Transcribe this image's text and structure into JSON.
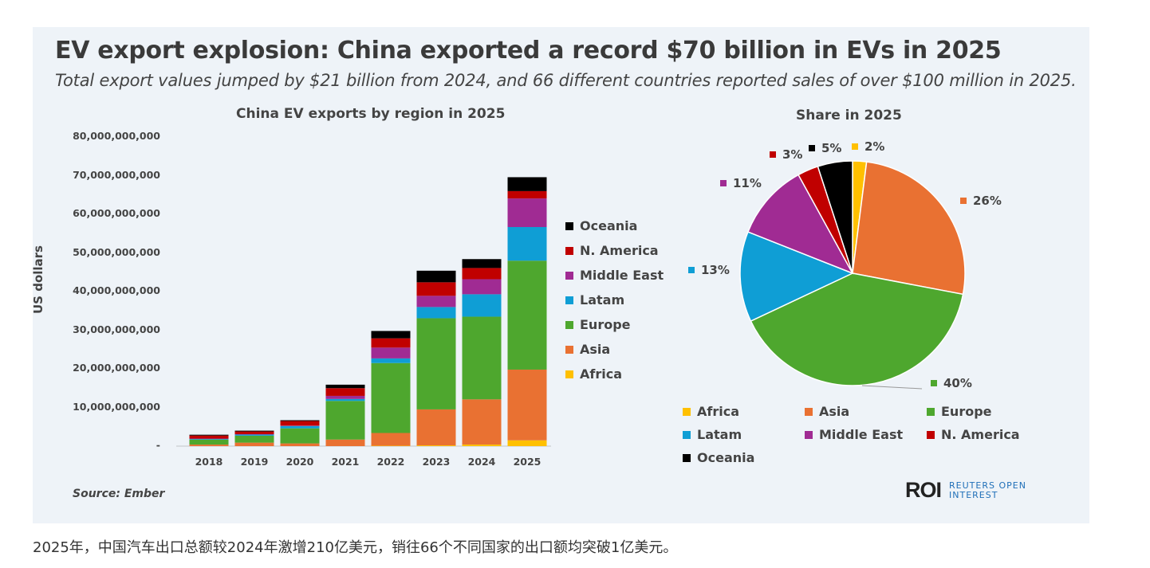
{
  "title": "EV export explosion: China exported a record $70 billion in EVs in 2025",
  "subtitle": "Total export values jumped by $21 billion from 2024, and 66 different countries reported sales of over $100 million in 2025.",
  "source": "Source:  Ember",
  "logo": {
    "mark": "ROI",
    "name_line1": "REUTERS OPEN",
    "name_line2": "INTEREST"
  },
  "caption": "2025年，中国汽车出口总额较2024年激增210亿美元，销往66个不同国家的出口额均突破1亿美元。",
  "colors": {
    "Africa": "#FFC000",
    "Asia": "#E97132",
    "Europe": "#4EA72E",
    "Latam": "#0F9ED5",
    "Middle East": "#A02B93",
    "N. America": "#C00000",
    "Oceania": "#000000"
  },
  "chart_data": [
    {
      "type": "bar",
      "stacked": true,
      "title": "China EV exports by region in 2025",
      "ylabel": "US dollars",
      "xlabel": "",
      "ylim": [
        0,
        80000000000
      ],
      "yticks": [
        "-",
        "10,000,000,000",
        "20,000,000,000",
        "30,000,000,000",
        "40,000,000,000",
        "50,000,000,000",
        "60,000,000,000",
        "70,000,000,000",
        "80,000,000,000"
      ],
      "categories": [
        "2018",
        "2019",
        "2020",
        "2021",
        "2022",
        "2023",
        "2024",
        "2025"
      ],
      "legend_position": "right",
      "legend_order": [
        "Oceania",
        "N. America",
        "Middle East",
        "Latam",
        "Europe",
        "Asia",
        "Africa"
      ],
      "series": [
        {
          "name": "Africa",
          "values": [
            0,
            0,
            0,
            0,
            100000000.0,
            200000000.0,
            400000000.0,
            1500000000.0
          ]
        },
        {
          "name": "Asia",
          "values": [
            400000000.0,
            900000000.0,
            700000000.0,
            1700000000.0,
            3300000000.0,
            9300000000.0,
            11700000000.0,
            18300000000.0
          ]
        },
        {
          "name": "Europe",
          "values": [
            1300000000.0,
            1800000000.0,
            3900000000.0,
            10000000000.0,
            18100000000.0,
            23600000000.0,
            21400000000.0,
            28200000000.0
          ]
        },
        {
          "name": "Latam",
          "values": [
            200000000.0,
            300000000.0,
            600000000.0,
            500000000.0,
            1200000000.0,
            2900000000.0,
            5800000000.0,
            8700000000.0
          ]
        },
        {
          "name": "Middle East",
          "values": [
            50000000.0,
            100000000.0,
            100000000.0,
            800000000.0,
            2800000000.0,
            2900000000.0,
            3900000000.0,
            7400000000.0
          ]
        },
        {
          "name": "N. America",
          "values": [
            800000000.0,
            700000000.0,
            1200000000.0,
            2000000000.0,
            2400000000.0,
            3500000000.0,
            2900000000.0,
            1900000000.0
          ]
        },
        {
          "name": "Oceania",
          "values": [
            200000000.0,
            200000000.0,
            200000000.0,
            900000000.0,
            1900000000.0,
            3000000000.0,
            2300000000.0,
            3600000000.0
          ]
        }
      ]
    },
    {
      "type": "pie",
      "title": "Share in 2025",
      "legend_position": "bottom",
      "labels": [
        "Africa",
        "Asia",
        "Europe",
        "Latam",
        "Middle East",
        "N. America",
        "Oceania"
      ],
      "values": [
        2,
        26,
        40,
        13,
        11,
        3,
        5
      ],
      "data_labels": [
        "2%",
        "26%",
        "40%",
        "13%",
        "11%",
        "3%",
        "5%"
      ]
    }
  ]
}
